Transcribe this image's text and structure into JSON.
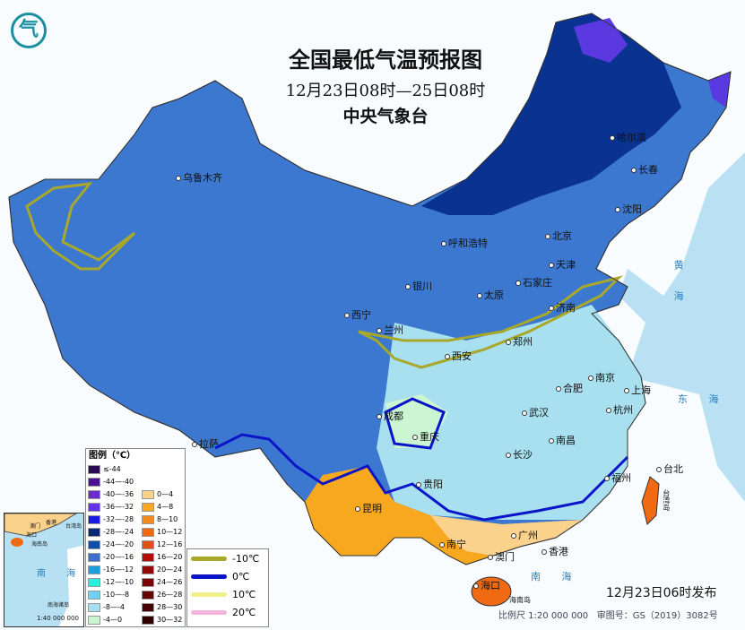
{
  "header": {
    "title": "全国最低气温预报图",
    "period": "12月23日08时—25日08时",
    "organization": "中央气象台",
    "logo_text": "气"
  },
  "cities": [
    "乌鲁木齐",
    "哈尔滨",
    "长春",
    "沈阳",
    "北京",
    "天津",
    "呼和浩特",
    "银川",
    "太原",
    "石家庄",
    "济南",
    "西宁",
    "兰州",
    "西安",
    "郑州",
    "合肥",
    "南京",
    "上海",
    "成都",
    "重庆",
    "武汉",
    "杭州",
    "拉萨",
    "长沙",
    "南昌",
    "贵阳",
    "福州",
    "台北",
    "昆明",
    "南宁",
    "广州",
    "香港",
    "澳门",
    "海口"
  ],
  "islands": [
    "台湾岛",
    "海南岛"
  ],
  "seas": [
    "黄 海",
    "东 海",
    "南 海"
  ],
  "legend": {
    "title": "图例（℃）",
    "cold": [
      {
        "label": "≤-44",
        "color": "#2a0a55"
      },
      {
        "label": "-44—-40",
        "color": "#4b1192"
      },
      {
        "label": "-40—-36",
        "color": "#6a2bd0"
      },
      {
        "label": "-36—-32",
        "color": "#6432ee"
      },
      {
        "label": "-32—-28",
        "color": "#1a1ae0"
      },
      {
        "label": "-28—-24",
        "color": "#0a2878"
      },
      {
        "label": "-24—-20",
        "color": "#0a50a8"
      },
      {
        "label": "-20—-16",
        "color": "#3c6ecc"
      },
      {
        "label": "-16—-12",
        "color": "#1e9ee0"
      },
      {
        "label": "-12—-10",
        "color": "#28f0dc"
      },
      {
        "label": "-10—-8",
        "color": "#6ed2f5"
      },
      {
        "label": "-8—-4",
        "color": "#a6e0f0"
      },
      {
        "label": "-4—0",
        "color": "#ccf5d2"
      }
    ],
    "warm": [
      {
        "label": "0—4",
        "color": "#fad28c"
      },
      {
        "label": "4—8",
        "color": "#f7a81e"
      },
      {
        "label": "8—10",
        "color": "#f58a1e"
      },
      {
        "label": "10—12",
        "color": "#f06a14"
      },
      {
        "label": "12—16",
        "color": "#e05014"
      },
      {
        "label": "16—20",
        "color": "#b40a0a"
      },
      {
        "label": "20—24",
        "color": "#960808"
      },
      {
        "label": "24—26",
        "color": "#7a0606"
      },
      {
        "label": "26—28",
        "color": "#640404"
      },
      {
        "label": "28—30",
        "color": "#460202"
      },
      {
        "label": "30—32",
        "color": "#300000"
      }
    ],
    "isolines": [
      {
        "label": "-10℃",
        "color": "#a8a82a"
      },
      {
        "label": "0℃",
        "color": "#0a14c8"
      },
      {
        "label": "10℃",
        "color": "#f0f08c"
      },
      {
        "label": "20℃",
        "color": "#f5b4dc"
      }
    ]
  },
  "inset": {
    "labels": [
      "南 海",
      "南海诸岛",
      "海口",
      "海南岛",
      "澳门",
      "香港",
      "台湾岛"
    ],
    "scale": "1:40 000 000"
  },
  "footer": {
    "published": "12月23日06时发布",
    "scale": "比例尺 1:20 000 000",
    "map_number": "审图号：GS（2019）3082号"
  }
}
